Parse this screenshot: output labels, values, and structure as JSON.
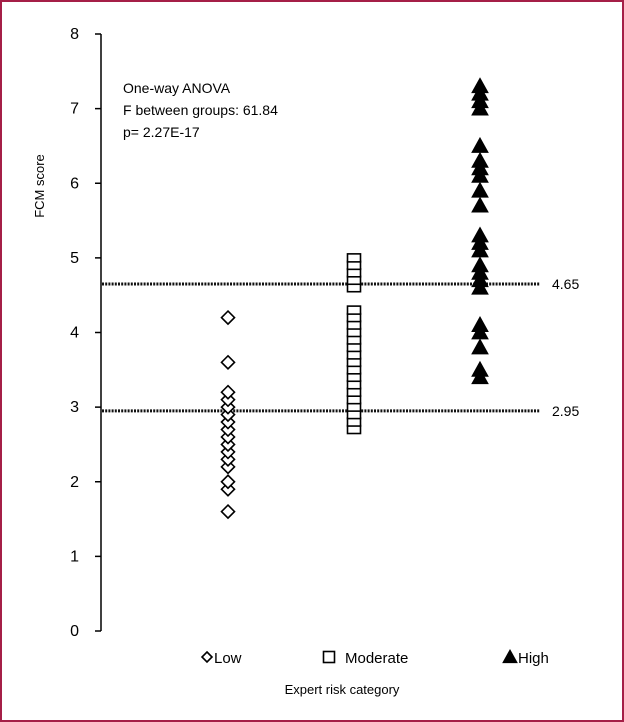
{
  "chart_data": {
    "type": "scatter",
    "title": "",
    "xlabel": "Expert risk category",
    "ylabel": "FCM score",
    "ylim": [
      0,
      8
    ],
    "yticks": [
      "0",
      "1",
      "2",
      "3",
      "4",
      "5",
      "6",
      "7",
      "8"
    ],
    "grid": false,
    "legend_placement": "bottom",
    "annotations": [
      "One-way ANOVA",
      "F between groups: 61.84",
      "p= 2.27E-17"
    ],
    "reference_lines": [
      {
        "value": 4.65,
        "label": "4.65"
      },
      {
        "value": 2.95,
        "label": "2.95"
      }
    ],
    "categories": [
      "Low",
      "Moderate",
      "High"
    ],
    "series": [
      {
        "name": "Low",
        "marker": "diamond-open",
        "y": [
          1.6,
          1.9,
          2.0,
          2.2,
          2.3,
          2.4,
          2.5,
          2.6,
          2.7,
          2.8,
          2.9,
          3.0,
          3.1,
          3.2,
          3.6,
          4.2
        ]
      },
      {
        "name": "Moderate",
        "marker": "square-open",
        "y": [
          2.7,
          2.8,
          2.9,
          3.0,
          3.1,
          3.2,
          3.3,
          3.4,
          3.5,
          3.6,
          3.7,
          3.8,
          3.9,
          4.0,
          4.1,
          4.2,
          4.3,
          4.6,
          4.7,
          4.8,
          4.9,
          5.0
        ]
      },
      {
        "name": "High",
        "marker": "triangle-filled",
        "y": [
          3.4,
          3.5,
          3.8,
          4.0,
          4.1,
          4.6,
          4.7,
          4.8,
          4.9,
          5.1,
          5.2,
          5.3,
          5.7,
          5.9,
          6.1,
          6.2,
          6.3,
          6.5,
          7.0,
          7.1,
          7.2,
          7.3
        ]
      }
    ]
  }
}
